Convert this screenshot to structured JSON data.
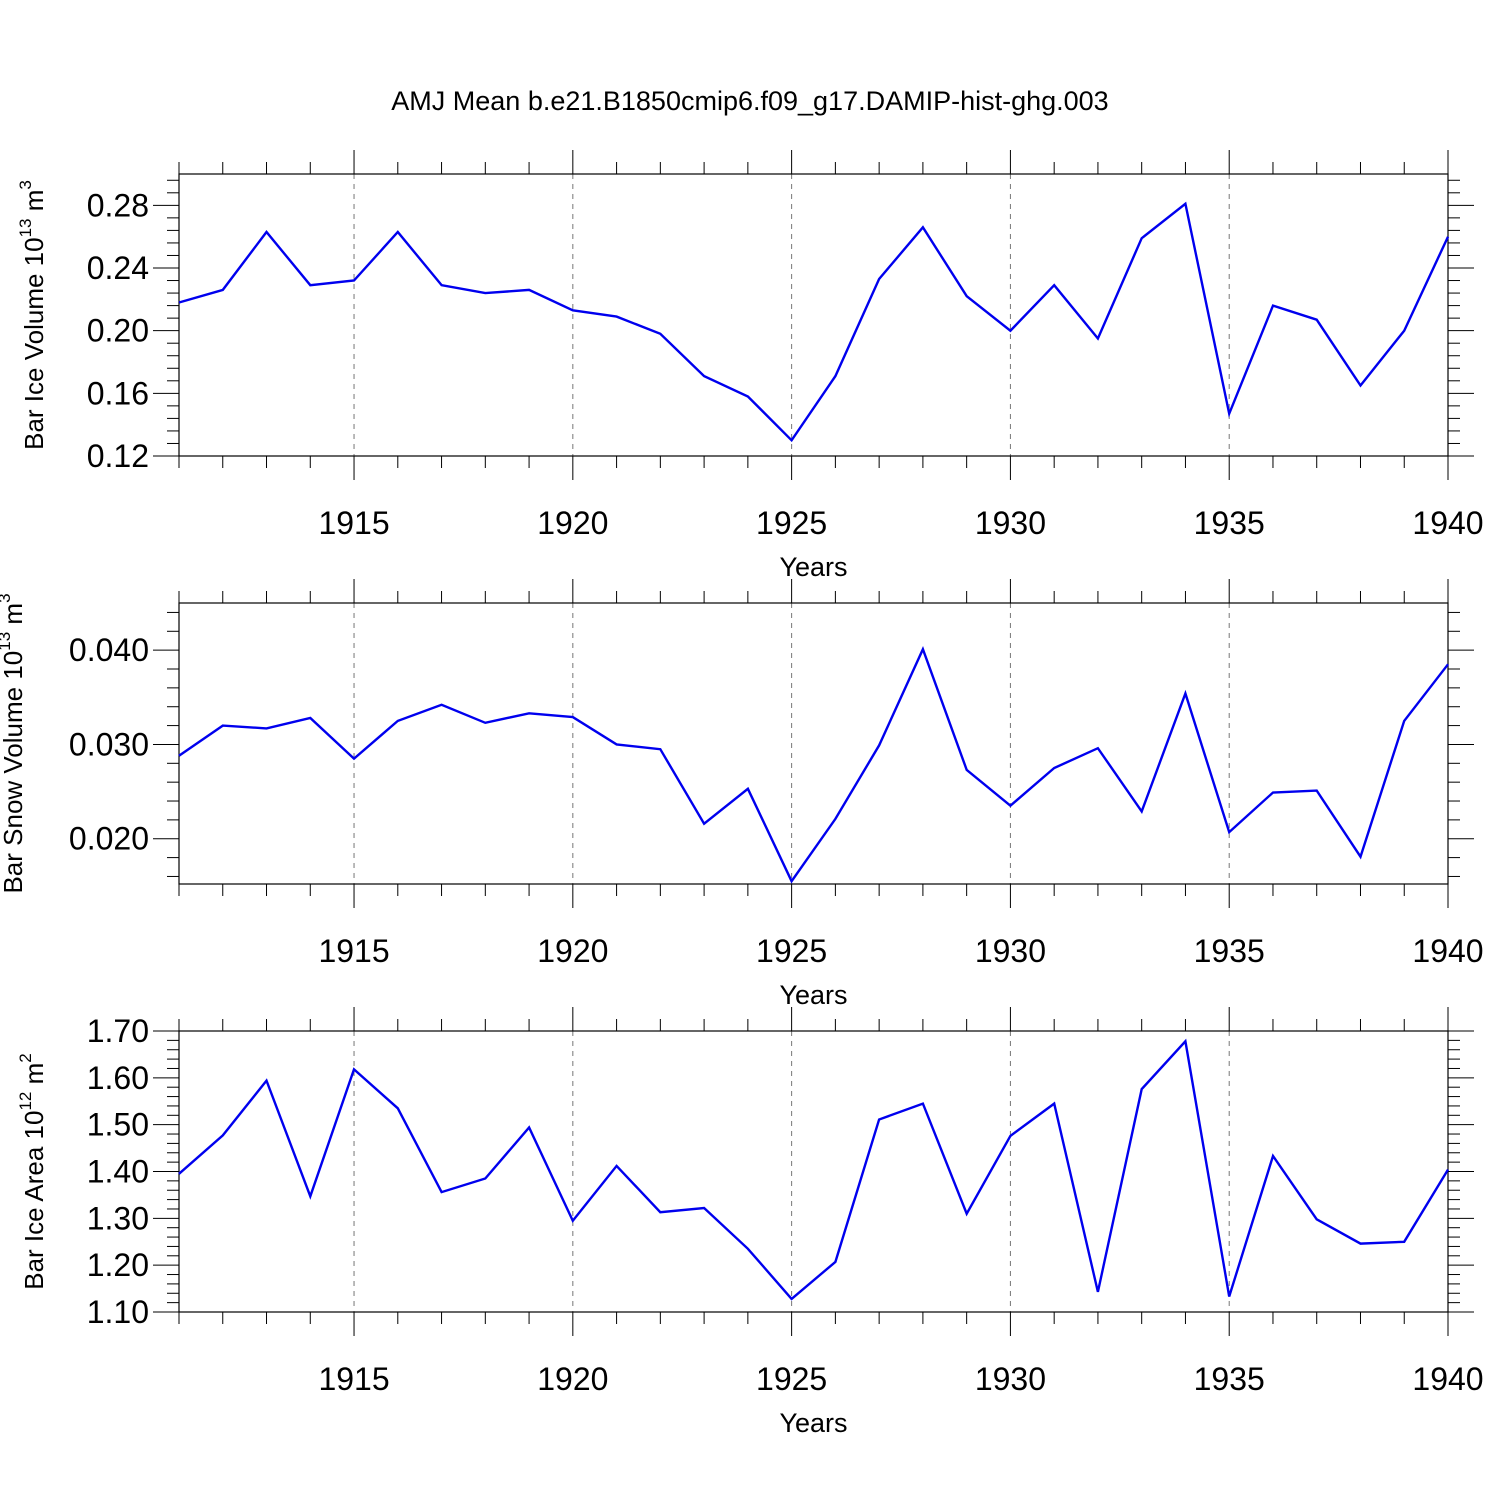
{
  "title": "AMJ Mean b.e21.B1850cmip6.f09_g17.DAMIP-hist-ghg.003",
  "chart_data": [
    {
      "type": "line",
      "ylabel": {
        "text": "Bar Ice Volume 10",
        "exponent": "13",
        "unit": " m",
        "unit_exponent": "3"
      },
      "xlabel": "Years",
      "xlim": [
        1911,
        1940
      ],
      "ylim": [
        0.12,
        0.3
      ],
      "yticks": [
        0.12,
        0.16,
        0.2,
        0.24,
        0.28
      ],
      "ytick_labels": [
        "0.12",
        "0.16",
        "0.20",
        "0.24",
        "0.28"
      ],
      "xticks": [
        1915,
        1920,
        1925,
        1930,
        1935,
        1940
      ],
      "xtick_labels": [
        "1915",
        "1920",
        "1925",
        "1930",
        "1935",
        "1940"
      ],
      "grid": "x-dashed",
      "color": "#0000ee",
      "x": [
        1911,
        1912,
        1913,
        1914,
        1915,
        1916,
        1917,
        1918,
        1919,
        1920,
        1921,
        1922,
        1923,
        1924,
        1925,
        1926,
        1927,
        1928,
        1929,
        1930,
        1931,
        1932,
        1933,
        1934,
        1935,
        1936,
        1937,
        1938,
        1939,
        1940
      ],
      "values": [
        0.218,
        0.226,
        0.263,
        0.229,
        0.232,
        0.263,
        0.229,
        0.224,
        0.226,
        0.213,
        0.209,
        0.198,
        0.171,
        0.158,
        0.13,
        0.171,
        0.233,
        0.266,
        0.222,
        0.2,
        0.229,
        0.195,
        0.259,
        0.281,
        0.147,
        0.216,
        0.207,
        0.165,
        0.2,
        0.26
      ]
    },
    {
      "type": "line",
      "ylabel": {
        "text": "Bar Snow Volume 10",
        "exponent": "13",
        "unit": " m",
        "unit_exponent": "3"
      },
      "xlabel": "Years",
      "xlim": [
        1911,
        1940
      ],
      "ylim": [
        0.0152,
        0.045
      ],
      "yticks": [
        0.02,
        0.03,
        0.04
      ],
      "ytick_labels": [
        "0.020",
        "0.030",
        "0.040"
      ],
      "xticks": [
        1915,
        1920,
        1925,
        1930,
        1935,
        1940
      ],
      "xtick_labels": [
        "1915",
        "1920",
        "1925",
        "1930",
        "1935",
        "1940"
      ],
      "grid": "x-dashed",
      "color": "#0000ee",
      "x": [
        1911,
        1912,
        1913,
        1914,
        1915,
        1916,
        1917,
        1918,
        1919,
        1920,
        1921,
        1922,
        1923,
        1924,
        1925,
        1926,
        1927,
        1928,
        1929,
        1930,
        1931,
        1932,
        1933,
        1934,
        1935,
        1936,
        1937,
        1938,
        1939,
        1940
      ],
      "values": [
        0.0288,
        0.032,
        0.0317,
        0.0328,
        0.0285,
        0.0325,
        0.0342,
        0.0323,
        0.0333,
        0.0329,
        0.03,
        0.0295,
        0.0216,
        0.0253,
        0.0155,
        0.0221,
        0.0299,
        0.0401,
        0.0273,
        0.0235,
        0.0275,
        0.0296,
        0.0229,
        0.0354,
        0.0207,
        0.0249,
        0.0251,
        0.0181,
        0.0325,
        0.0385
      ]
    },
    {
      "type": "line",
      "ylabel": {
        "text": "Bar Ice Area 10",
        "exponent": "12",
        "unit": " m",
        "unit_exponent": "2"
      },
      "xlabel": "Years",
      "xlim": [
        1911,
        1940
      ],
      "ylim": [
        1.1,
        1.7
      ],
      "yticks": [
        1.1,
        1.2,
        1.3,
        1.4,
        1.5,
        1.6,
        1.7
      ],
      "ytick_labels": [
        "1.10",
        "1.20",
        "1.30",
        "1.40",
        "1.50",
        "1.60",
        "1.70"
      ],
      "xticks": [
        1915,
        1920,
        1925,
        1930,
        1935,
        1940
      ],
      "xtick_labels": [
        "1915",
        "1920",
        "1925",
        "1930",
        "1935",
        "1940"
      ],
      "grid": "x-dashed",
      "color": "#0000ee",
      "x": [
        1911,
        1912,
        1913,
        1914,
        1915,
        1916,
        1917,
        1918,
        1919,
        1920,
        1921,
        1922,
        1923,
        1924,
        1925,
        1926,
        1927,
        1928,
        1929,
        1930,
        1931,
        1932,
        1933,
        1934,
        1935,
        1936,
        1937,
        1938,
        1939,
        1940
      ],
      "values": [
        1.395,
        1.477,
        1.594,
        1.347,
        1.618,
        1.535,
        1.356,
        1.385,
        1.494,
        1.295,
        1.412,
        1.313,
        1.322,
        1.235,
        1.128,
        1.207,
        1.511,
        1.545,
        1.31,
        1.476,
        1.545,
        1.143,
        1.576,
        1.678,
        1.133,
        1.433,
        1.298,
        1.246,
        1.25,
        1.404
      ]
    }
  ]
}
